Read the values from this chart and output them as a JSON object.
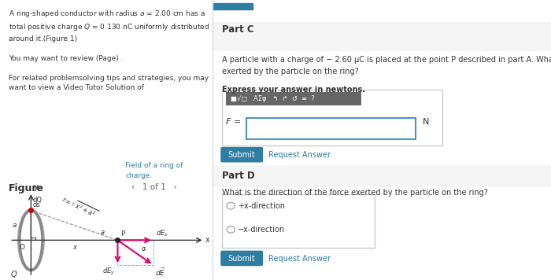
{
  "bg_color": "#ffffff",
  "left_panel_bg": "#ddeeff",
  "right_panel_bg": "#f5f5f5",
  "fig_width": 7.0,
  "fig_height": 3.56,
  "left_text_lines": [
    "A ring-shaped conductor with radius a = 2.00 cm has a",
    "total positive charge Q = 0.130 nC uniformly distributed",
    "around it.(Figure 1)",
    "",
    "You may want to review (Page) .",
    "",
    "For related problemsolving tips and strategies, you may",
    "want to view a Video Tutor Solution of Field of a ring of",
    "charge."
  ],
  "link_text": "Field of a ring of\ncharge",
  "figure_label": "Figure",
  "part_c_title": "Part C",
  "part_c_question": "A particle with a charge of − 2.60 μC is placed at the point P described in part A. What is the magnitude of the force\nexerted by the particle on the ring?",
  "part_c_bold": "Express your answer in newtons.",
  "f_label": "F =",
  "n_label": "N",
  "submit_color": "#2e7da3",
  "submit_text": "Submit",
  "request_answer_text": "Request Answer",
  "part_d_title": "Part D",
  "part_d_question": "What is the direction of the force exerted by the particle on the ring?",
  "radio_option1": "+x-direction",
  "radio_option2": "-x-direction",
  "arrow_color": "#e0006a",
  "dashed_color": "#888888",
  "ring_color": "#888888",
  "axis_color": "#333333",
  "label_color": "#333333"
}
